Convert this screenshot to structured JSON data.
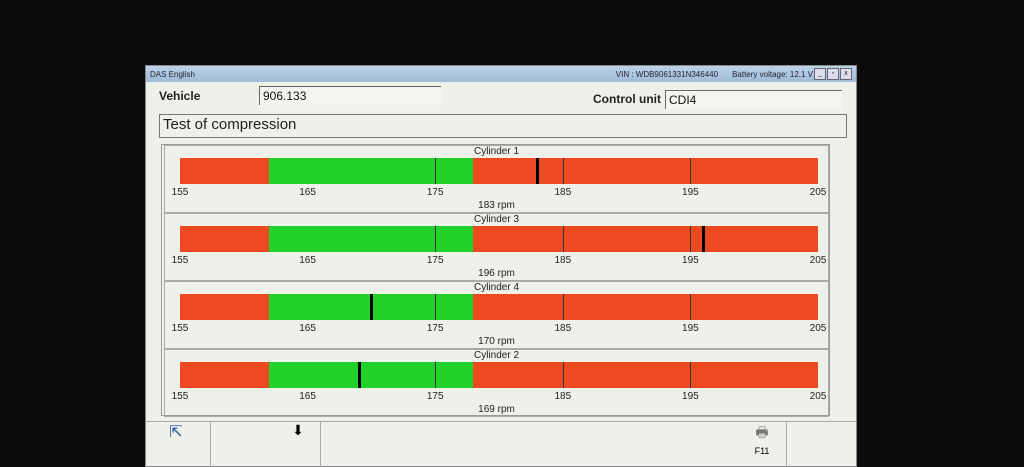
{
  "window": {
    "app_title": "DAS English",
    "vin": "VIN : WDB9061331N346440",
    "battery": "Battery voltage: 12.1 V"
  },
  "vehicle": {
    "label": "Vehicle",
    "value": "906.133"
  },
  "control_unit": {
    "label": "Control unit",
    "value": "CDI4"
  },
  "test_title": "Test of compression",
  "scale": {
    "min": 155,
    "max": 205,
    "green_from": 162,
    "green_to": 178,
    "ticks": [
      "155",
      "165",
      "175",
      "185",
      "195",
      "205"
    ]
  },
  "colors": {
    "red": "#ee4a22",
    "green": "#22d12a"
  },
  "cylinders": [
    {
      "name": "Cylinder  1",
      "rpm": 183,
      "rpm_label": "183 rpm"
    },
    {
      "name": "Cylinder  3",
      "rpm": 196,
      "rpm_label": "196 rpm"
    },
    {
      "name": "Cylinder  4",
      "rpm": 170,
      "rpm_label": "170 rpm"
    },
    {
      "name": "Cylinder  2",
      "rpm": 169,
      "rpm_label": "169 rpm"
    }
  ],
  "toolbar": {
    "f11": "F11"
  }
}
